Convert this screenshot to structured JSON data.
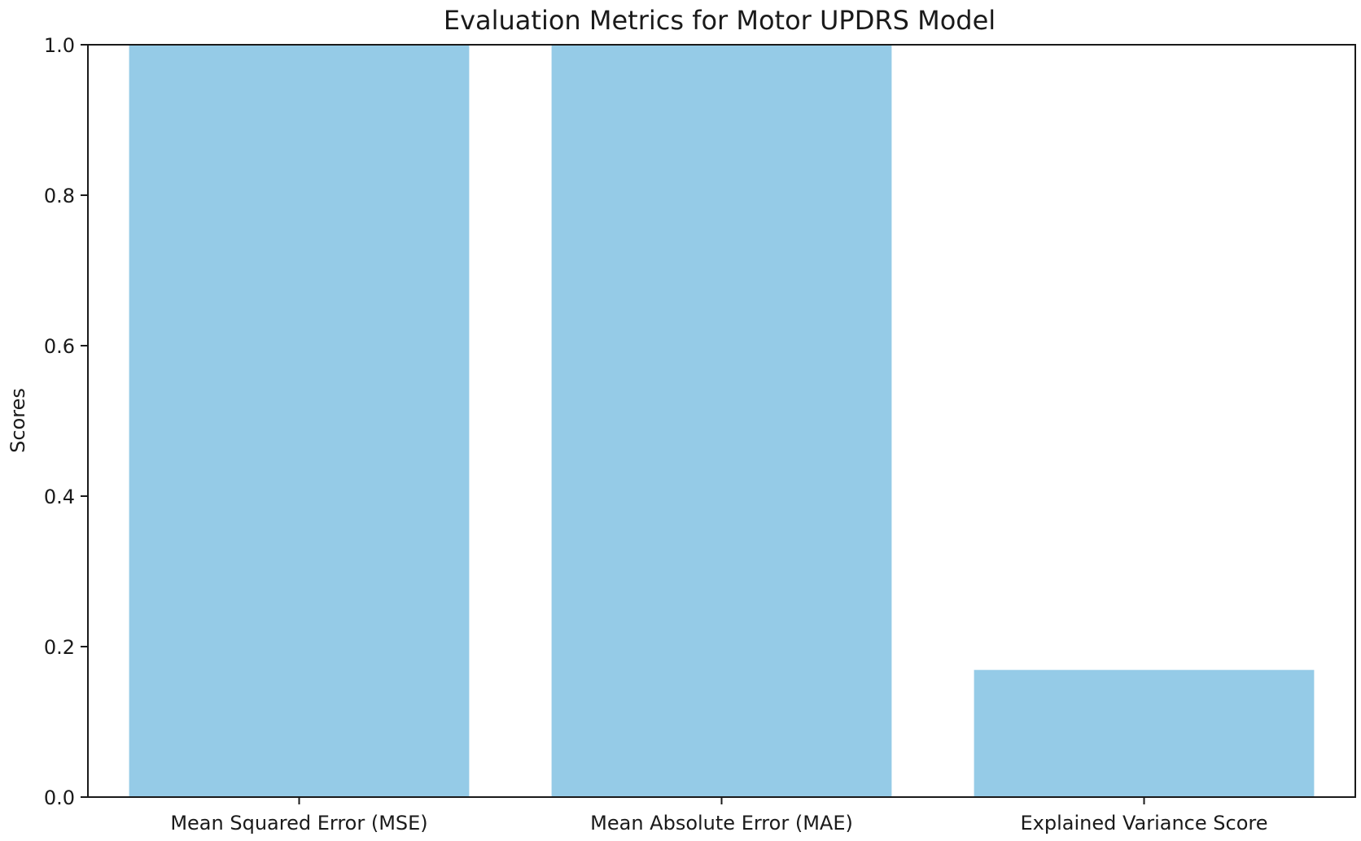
{
  "chart_data": {
    "type": "bar",
    "title": "Evaluation Metrics for Motor UPDRS Model",
    "xlabel": "",
    "ylabel": "Scores",
    "categories": [
      "Mean Squared Error (MSE)",
      "Mean Absolute Error (MAE)",
      "Explained Variance Score"
    ],
    "values": [
      1.0,
      1.0,
      0.169
    ],
    "ylim": [
      0,
      1.0
    ],
    "yticks": [
      "0.0",
      "0.2",
      "0.4",
      "0.6",
      "0.8",
      "1.0"
    ],
    "bar_color": "#95cbe7",
    "grid": false,
    "legend": false
  }
}
